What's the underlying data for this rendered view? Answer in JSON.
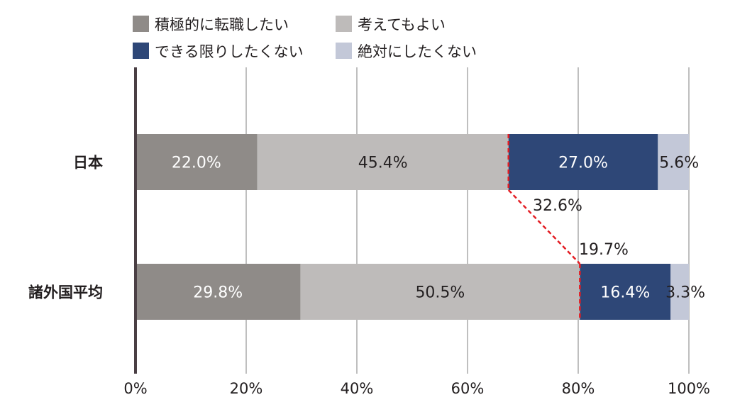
{
  "chart_data": {
    "type": "bar",
    "orientation": "horizontal",
    "stacked": true,
    "categories": [
      "日本",
      "諸外国平均"
    ],
    "series": [
      {
        "name": "積極的に転職したい",
        "values": [
          22.0,
          29.8
        ],
        "labels": [
          "22.0%",
          "29.8%"
        ],
        "color": "#8f8b88",
        "label_color": "#ffffff"
      },
      {
        "name": "考えてもよい",
        "values": [
          45.4,
          50.5
        ],
        "labels": [
          "45.4%",
          "50.5%"
        ],
        "color": "#bebbba",
        "label_color": "#231f20"
      },
      {
        "name": "できる限りしたくない",
        "values": [
          27.0,
          16.4
        ],
        "labels": [
          "27.0%",
          "16.4%"
        ],
        "color": "#2e4777",
        "label_color": "#ffffff"
      },
      {
        "name": "絶対にしたくない",
        "values": [
          5.6,
          3.3
        ],
        "labels": [
          "5.6%",
          "3.3%"
        ],
        "color": "#c3c8d8",
        "label_color": "#231f20"
      }
    ],
    "xlim": [
      0,
      100
    ],
    "xticks": [
      "0%",
      "20%",
      "40%",
      "60%",
      "80%",
      "100%"
    ],
    "grid": true,
    "legend_position": "top-left",
    "connector": {
      "color": "#e31e24",
      "labels": [
        "32.6%",
        "19.7%"
      ]
    }
  }
}
